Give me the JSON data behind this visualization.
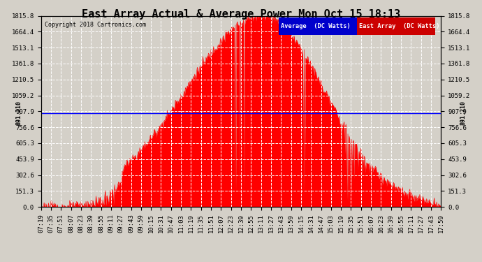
{
  "title": "East Array Actual & Average Power Mon Oct 15 18:13",
  "copyright": "Copyright 2018 Cartronics.com",
  "legend_items": [
    {
      "label": "Average  (DC Watts)",
      "color": "#0000cc"
    },
    {
      "label": "East Array  (DC Watts)",
      "color": "#cc0000"
    }
  ],
  "avg_value": 891.21,
  "avg_label": "891.210",
  "ymax": 1815.8,
  "ymin": 0.0,
  "yticks": [
    0.0,
    151.3,
    302.6,
    453.9,
    605.3,
    756.6,
    907.9,
    1059.2,
    1210.5,
    1361.8,
    1513.1,
    1664.4,
    1815.8
  ],
  "background_color": "#d4d0c8",
  "plot_bg_color": "#d4d0c8",
  "grid_color": "#ffffff",
  "fill_color": "#ff0000",
  "avg_line_color": "#0000ff",
  "title_fontsize": 11,
  "tick_fontsize": 6.5,
  "num_points": 641
}
